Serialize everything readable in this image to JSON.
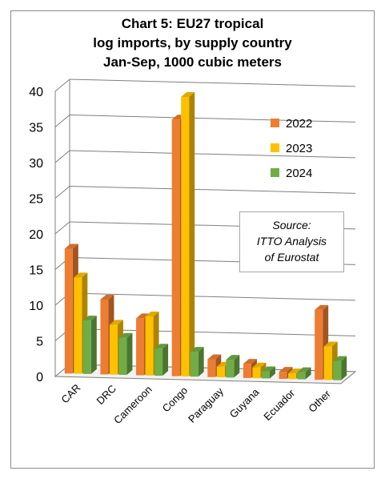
{
  "chart_data": {
    "type": "bar",
    "title_lines": [
      "Chart 5: EU27 tropical",
      "log imports, by supply country",
      "Jan-Sep, 1000 cubic meters"
    ],
    "categories": [
      "CAR",
      "DRC",
      "Cameroon",
      "Congo",
      "Paraguay",
      "Guyana",
      "Ecuador",
      "Other"
    ],
    "series": [
      {
        "name": "2022",
        "color": "#ed7d31",
        "values": [
          17.5,
          10.5,
          8.0,
          36.0,
          2.5,
          2.0,
          1.0,
          9.8
        ]
      },
      {
        "name": "2023",
        "color": "#ffc000",
        "values": [
          13.5,
          7.0,
          8.3,
          39.2,
          1.5,
          1.5,
          0.8,
          4.7
        ]
      },
      {
        "name": "2024",
        "color": "#70ad47",
        "values": [
          7.5,
          5.2,
          3.8,
          3.5,
          2.5,
          1.0,
          1.0,
          2.7
        ]
      }
    ],
    "y_ticks": [
      "0",
      "5",
      "10",
      "15",
      "20",
      "25",
      "30",
      "35",
      "40"
    ],
    "ylim": [
      0,
      40
    ],
    "grid": true,
    "legend_position": "top-right",
    "projection": "3d",
    "annotation_lines": [
      "Source:",
      "ITTO  Analysis",
      "of Eurostat"
    ]
  }
}
